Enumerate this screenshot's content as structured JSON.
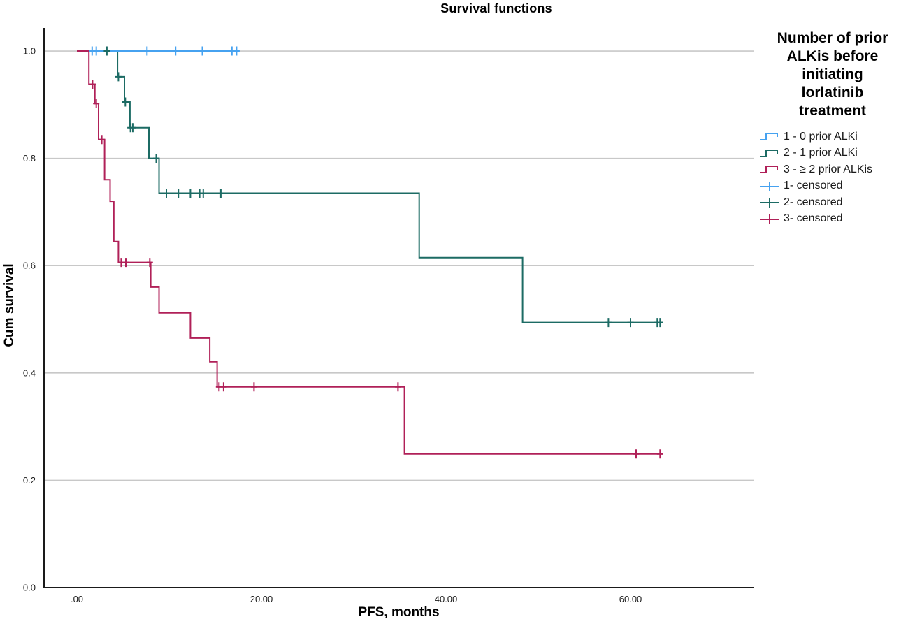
{
  "page": {
    "background": "#ffffff"
  },
  "colors": {
    "axis": "#1a1a1a",
    "grid": "#c8c8c8",
    "group1_blue": "#46a2f0",
    "group2_teal": "#1c6b64",
    "group3_crimson": "#b02058"
  },
  "chart_data": {
    "type": "line",
    "subtype": "kaplan-meier-step",
    "title": "Survival functions",
    "xlabel": "PFS, months",
    "ylabel": "Cum survival",
    "xlim": [
      -3.56,
      73.33
    ],
    "ylim": [
      0,
      1.043
    ],
    "grid": "horizontal-only",
    "legend_position": "right",
    "x_ticks": [
      {
        "v": 0,
        "label": ".00"
      },
      {
        "v": 20,
        "label": "20.00"
      },
      {
        "v": 40,
        "label": "40.00"
      },
      {
        "v": 60,
        "label": "60.00"
      }
    ],
    "y_ticks": [
      {
        "v": 0.0,
        "label": "0.0"
      },
      {
        "v": 0.2,
        "label": "0.2"
      },
      {
        "v": 0.4,
        "label": "0.4"
      },
      {
        "v": 0.6,
        "label": "0.6"
      },
      {
        "v": 0.8,
        "label": "0.8"
      },
      {
        "v": 1.0,
        "label": "1.0"
      }
    ],
    "series": [
      {
        "name": "1 - 0 prior ALKi",
        "color": "#46a2f0",
        "end": 17.6,
        "points": [
          [
            0,
            1.0
          ]
        ],
        "censors": [
          [
            1.65,
            1.0
          ],
          [
            2.1,
            1.0
          ],
          [
            7.6,
            1.0
          ],
          [
            10.7,
            1.0
          ],
          [
            13.6,
            1.0
          ],
          [
            16.8,
            1.0
          ],
          [
            17.3,
            1.0
          ]
        ]
      },
      {
        "name": "2 - 1 prior ALKi",
        "color": "#1c6b64",
        "end": 63.5,
        "points": [
          [
            0,
            1.0
          ],
          [
            4.4,
            0.952
          ],
          [
            5.15,
            0.905
          ],
          [
            5.75,
            0.857
          ],
          [
            7.8,
            0.8
          ],
          [
            8.9,
            0.735
          ],
          [
            37.1,
            0.615
          ],
          [
            48.3,
            0.494
          ]
        ],
        "censors": [
          [
            3.25,
            1.0
          ],
          [
            4.5,
            0.952
          ],
          [
            5.25,
            0.905
          ],
          [
            5.8,
            0.857
          ],
          [
            6.05,
            0.857
          ],
          [
            8.6,
            0.8
          ],
          [
            9.7,
            0.735
          ],
          [
            11.0,
            0.735
          ],
          [
            12.3,
            0.735
          ],
          [
            13.3,
            0.735
          ],
          [
            13.7,
            0.735
          ],
          [
            15.6,
            0.735
          ],
          [
            57.6,
            0.494
          ],
          [
            60.0,
            0.494
          ],
          [
            62.9,
            0.494
          ],
          [
            63.2,
            0.494
          ]
        ]
      },
      {
        "name": "3 - ≥ 2 prior ALKis",
        "color": "#b02058",
        "end": 63.5,
        "points": [
          [
            0,
            1.0
          ],
          [
            1.3,
            0.938
          ],
          [
            1.95,
            0.902
          ],
          [
            2.35,
            0.835
          ],
          [
            3.0,
            0.76
          ],
          [
            3.6,
            0.72
          ],
          [
            4.0,
            0.645
          ],
          [
            4.5,
            0.606
          ],
          [
            8.0,
            0.56
          ],
          [
            8.9,
            0.512
          ],
          [
            12.3,
            0.465
          ],
          [
            14.4,
            0.421
          ],
          [
            15.2,
            0.374
          ],
          [
            35.5,
            0.249
          ]
        ],
        "censors": [
          [
            1.7,
            0.938
          ],
          [
            2.1,
            0.902
          ],
          [
            2.7,
            0.835
          ],
          [
            4.8,
            0.606
          ],
          [
            5.3,
            0.606
          ],
          [
            7.9,
            0.606
          ],
          [
            15.4,
            0.374
          ],
          [
            15.9,
            0.374
          ],
          [
            19.2,
            0.374
          ],
          [
            34.8,
            0.374
          ],
          [
            60.6,
            0.249
          ],
          [
            63.2,
            0.249
          ]
        ]
      }
    ]
  },
  "legend": {
    "title": "Number of prior ALKis before initiating lorlatinib treatment",
    "title_lines": [
      "Number of prior",
      "ALKis before",
      "initiating",
      "lorlatinib",
      "treatment"
    ],
    "items": [
      {
        "label": "1 - 0 prior ALKi",
        "icon": "step-line",
        "color": "#46a2f0"
      },
      {
        "label": "2 - 1 prior ALKi",
        "icon": "step-line",
        "color": "#1c6b64"
      },
      {
        "label": "3 - ≥ 2 prior ALKis",
        "icon": "step-line",
        "color": "#b02058"
      },
      {
        "label": "1- censored",
        "icon": "plus-cross",
        "color": "#46a2f0"
      },
      {
        "label": "2- censored",
        "icon": "plus-cross",
        "color": "#1c6b64"
      },
      {
        "label": "3- censored",
        "icon": "plus-cross",
        "color": "#b02058"
      }
    ]
  }
}
